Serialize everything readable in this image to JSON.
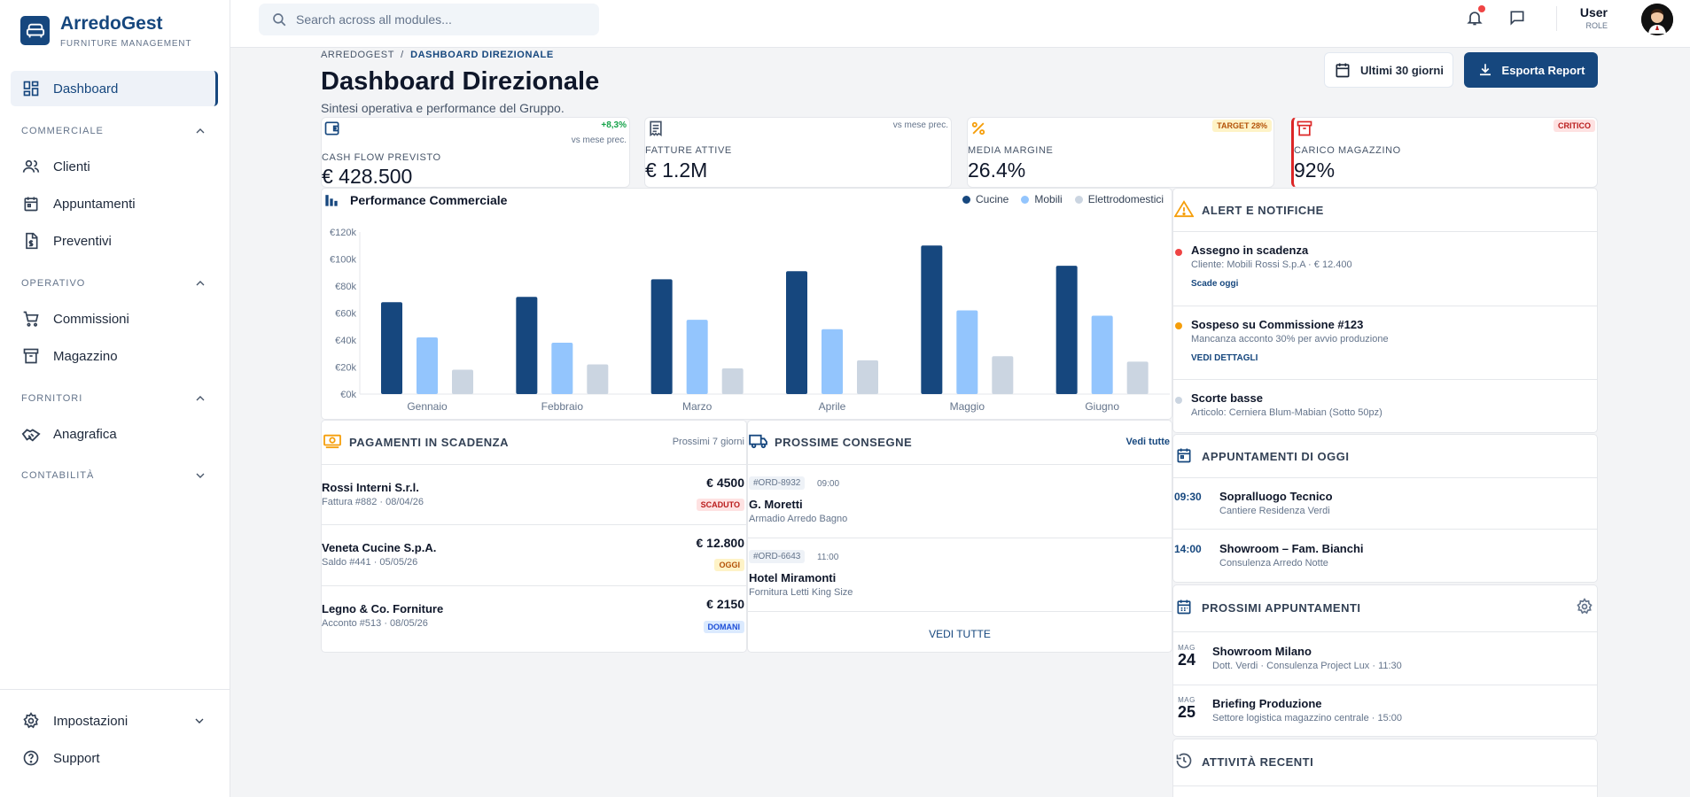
{
  "brand": {
    "name": "ArredoGest",
    "subtitle": "FURNITURE MANAGEMENT"
  },
  "nav": {
    "dashboard": "Dashboard",
    "sections": [
      {
        "label": "COMMERCIALE",
        "items": [
          "Clienti",
          "Appuntamenti",
          "Preventivi"
        ]
      },
      {
        "label": "OPERATIVO",
        "items": [
          "Commissioni",
          "Magazzino"
        ]
      },
      {
        "label": "FORNITORI",
        "items": [
          "Anagrafica"
        ]
      },
      {
        "label": "CONTABILITÀ",
        "items": []
      }
    ],
    "bottom": [
      "Impostazioni",
      "Support"
    ]
  },
  "topbar": {
    "search_placeholder": "Search across all modules...",
    "user_name": "User",
    "user_role": "ROLE"
  },
  "header": {
    "breadcrumb_root": "ARREDOGEST",
    "breadcrumb_sep": "/",
    "breadcrumb_current": "DASHBOARD DIREZIONALE",
    "title": "Dashboard Direzionale",
    "subtitle": "Sintesi operativa e performance del Gruppo.",
    "period_button": "Ultimi 30 giorni",
    "export_button": "Esporta Report"
  },
  "kpis": [
    {
      "label": "CASH FLOW PREVISTO",
      "value": "€ 428.500",
      "delta": "+8,3%",
      "ref": "vs mese prec."
    },
    {
      "label": "FATTURE ATTIVE",
      "value": "€ 1.2M",
      "ref": "vs mese prec."
    },
    {
      "label": "MEDIA MARGINE",
      "value": "26.4%",
      "badge": "TARGET 28%"
    },
    {
      "label": "CARICO MAGAZZINO",
      "value": "92%",
      "badge": "CRITICO"
    }
  ],
  "performance": {
    "title": "Performance Commerciale"
  },
  "chart_data": {
    "type": "bar",
    "title": "Performance Commerciale",
    "categories": [
      "Gennaio",
      "Febbraio",
      "Marzo",
      "Aprile",
      "Maggio",
      "Giugno"
    ],
    "series": [
      {
        "name": "Cucine",
        "color": "#16477e",
        "values": [
          68000,
          72000,
          85000,
          91000,
          110000,
          95000
        ]
      },
      {
        "name": "Mobili",
        "color": "#93c5fd",
        "values": [
          42000,
          38000,
          55000,
          48000,
          62000,
          58000
        ]
      },
      {
        "name": "Elettrodomestici",
        "color": "#cbd5e1",
        "values": [
          18000,
          22000,
          19000,
          25000,
          28000,
          24000
        ]
      }
    ],
    "yticks": [
      "€0k",
      "€20k",
      "€40k",
      "€60k",
      "€80k",
      "€100k",
      "€120k"
    ],
    "ylim": [
      0,
      120000
    ],
    "legend": "top-right",
    "grid": false
  },
  "payments": {
    "title": "PAGAMENTI IN SCADENZA",
    "range": "Prossimi 7 giorni",
    "items": [
      {
        "name": "Rossi Interni S.r.l.",
        "sub": "Fattura #882 · 08/04/26",
        "amount": "€ 4500",
        "badge": "SCADUTO"
      },
      {
        "name": "Veneta Cucine S.p.A.",
        "sub": "Saldo #441 · 05/05/26",
        "amount": "€ 12.800",
        "badge": "OGGI"
      },
      {
        "name": "Legno & Co. Forniture",
        "sub": "Acconto #513 · 08/05/26",
        "amount": "€ 2150",
        "badge": "DOMANI"
      }
    ]
  },
  "deliveries": {
    "title": "PROSSIME CONSEGNE",
    "view_all_top": "Vedi tutte",
    "view_all_bottom": "VEDI TUTTE",
    "items": [
      {
        "code": "#ORD-8932",
        "time": "09:00",
        "name": "G. Moretti",
        "desc": "Armadio Arredo Bagno"
      },
      {
        "code": "#ORD-6643",
        "time": "11:00",
        "name": "Hotel Miramonti",
        "desc": "Fornitura Letti King Size"
      }
    ]
  },
  "alerts": {
    "title": "ALERT E NOTIFICHE",
    "items": [
      {
        "title": "Assegno in scadenza",
        "sub": "Cliente: Mobili Rossi S.p.A · € 12.400",
        "link": "Scade oggi",
        "color": "#ef4444"
      },
      {
        "title": "Sospeso su Commissione #123",
        "sub": "Mancanza acconto 30% per avvio produzione",
        "link": "VEDI DETTAGLI",
        "color": "#f59e0b"
      },
      {
        "title": "Scorte basse",
        "sub": "Articolo: Cerniera Blum-Mabian (Sotto 50pz)",
        "color": "#cbd5e1"
      }
    ]
  },
  "today_appts": {
    "title": "APPUNTAMENTI DI OGGI",
    "items": [
      {
        "time": "09:30",
        "title": "Sopralluogo Tecnico",
        "sub": "Cantiere Residenza Verdi"
      },
      {
        "time": "14:00",
        "title": "Showroom – Fam. Bianchi",
        "sub": "Consulenza Arredo Notte"
      }
    ]
  },
  "next_appts": {
    "title": "PROSSIMI APPUNTAMENTI",
    "items": [
      {
        "month": "MAG",
        "day": "24",
        "title": "Showroom Milano",
        "sub": "Dott. Verdi · Consulenza Project Lux · 11:30"
      },
      {
        "month": "MAG",
        "day": "25",
        "title": "Briefing Produzione",
        "sub": "Settore logistica magazzino centrale · 15:00"
      }
    ]
  },
  "activity": {
    "title": "ATTIVITÀ RECENTI"
  }
}
